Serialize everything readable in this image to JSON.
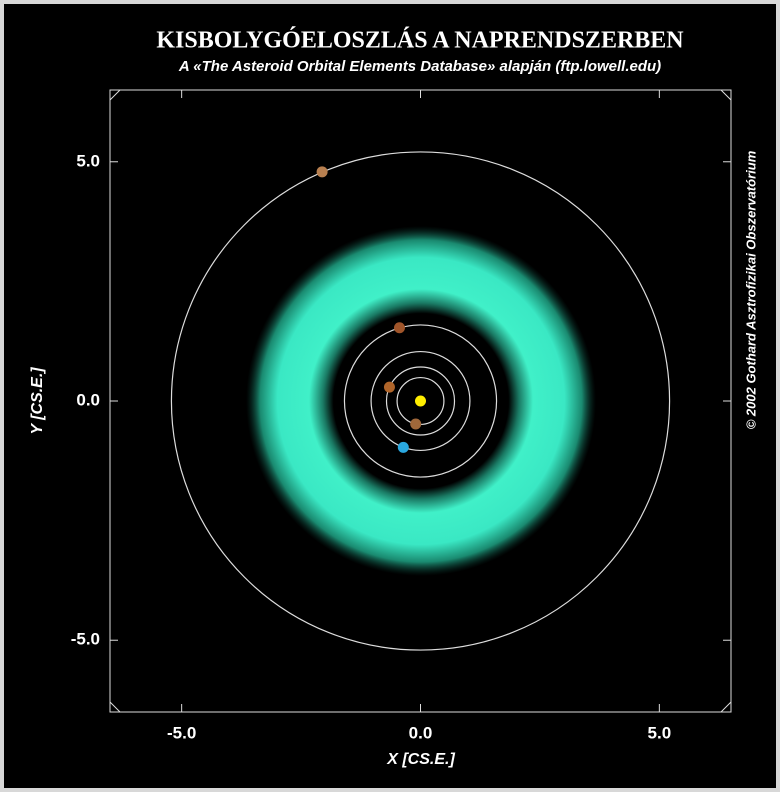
{
  "chart_data": {
    "type": "scatter",
    "title": "KISBOLYGÓELOSZLÁS A NAPRENDSZERBEN",
    "subtitle": "A «The Asteroid Orbital Elements Database» alapján (ftp.lowell.edu)",
    "x_label": "X [CS.E.]",
    "y_label": "Y [CS.E.]",
    "credit": "© 2002 Gothard Asztrofizikai Obszervatórium",
    "x": [
      0,
      -0.1,
      -0.65,
      -0.36,
      -0.44,
      -2.06
    ],
    "values": [
      0,
      -0.48,
      0.29,
      -0.97,
      1.53,
      4.79
    ],
    "colors": [
      "#ffee00",
      "#a0683a",
      "#b0652a",
      "#2aa8e0",
      "#a0552a",
      "#b88050"
    ],
    "xlim": [
      -6.5,
      6.5
    ],
    "ylim": [
      -6.5,
      6.5
    ],
    "xticks": [
      {
        "value": -5,
        "label": "-5.0"
      },
      {
        "value": 0,
        "label": "0.0"
      },
      {
        "value": 5,
        "label": "5.0"
      }
    ],
    "yticks": [
      {
        "value": -5,
        "label": "-5.0"
      },
      {
        "value": 0,
        "label": "0.0"
      },
      {
        "value": 5,
        "label": "5.0"
      }
    ],
    "orbits": true
  }
}
